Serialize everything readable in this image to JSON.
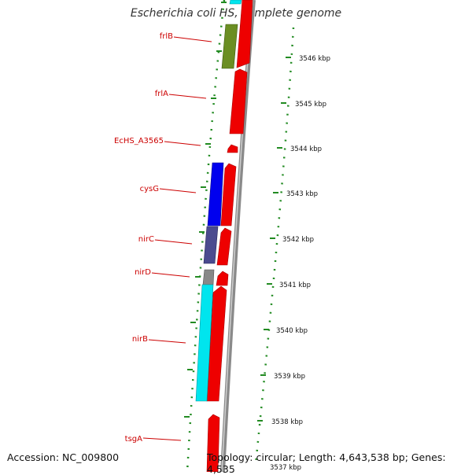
{
  "title": "Escherichia coli HS, complete genome",
  "accession_line": "Accession: NC_009800",
  "summary_line": "Topology: circular; Length: 4,643,538 bp; Genes: 4,535",
  "colors": {
    "gene_label": "#cc0000",
    "tick_green": "#228b22",
    "backbone": "#8a8a8a",
    "cds_red": "#ee0000",
    "frlB": "#6b8e23",
    "cysG": "#0000ee",
    "nirC": "#4b4b8f",
    "nirD": "#888888",
    "nirB": "#00e5ee"
  },
  "gene_labels": [
    "frlB",
    "frlA",
    "EcHS_A3565",
    "cysG",
    "nirC",
    "nirD",
    "nirB",
    "tsgA"
  ],
  "kbp_ticks": [
    "3546 kbp",
    "3545 kbp",
    "3544 kbp",
    "3543 kbp",
    "3542 kbp",
    "3541 kbp",
    "3540 kbp",
    "3539 kbp",
    "3538 kbp",
    "3537 kbp"
  ]
}
